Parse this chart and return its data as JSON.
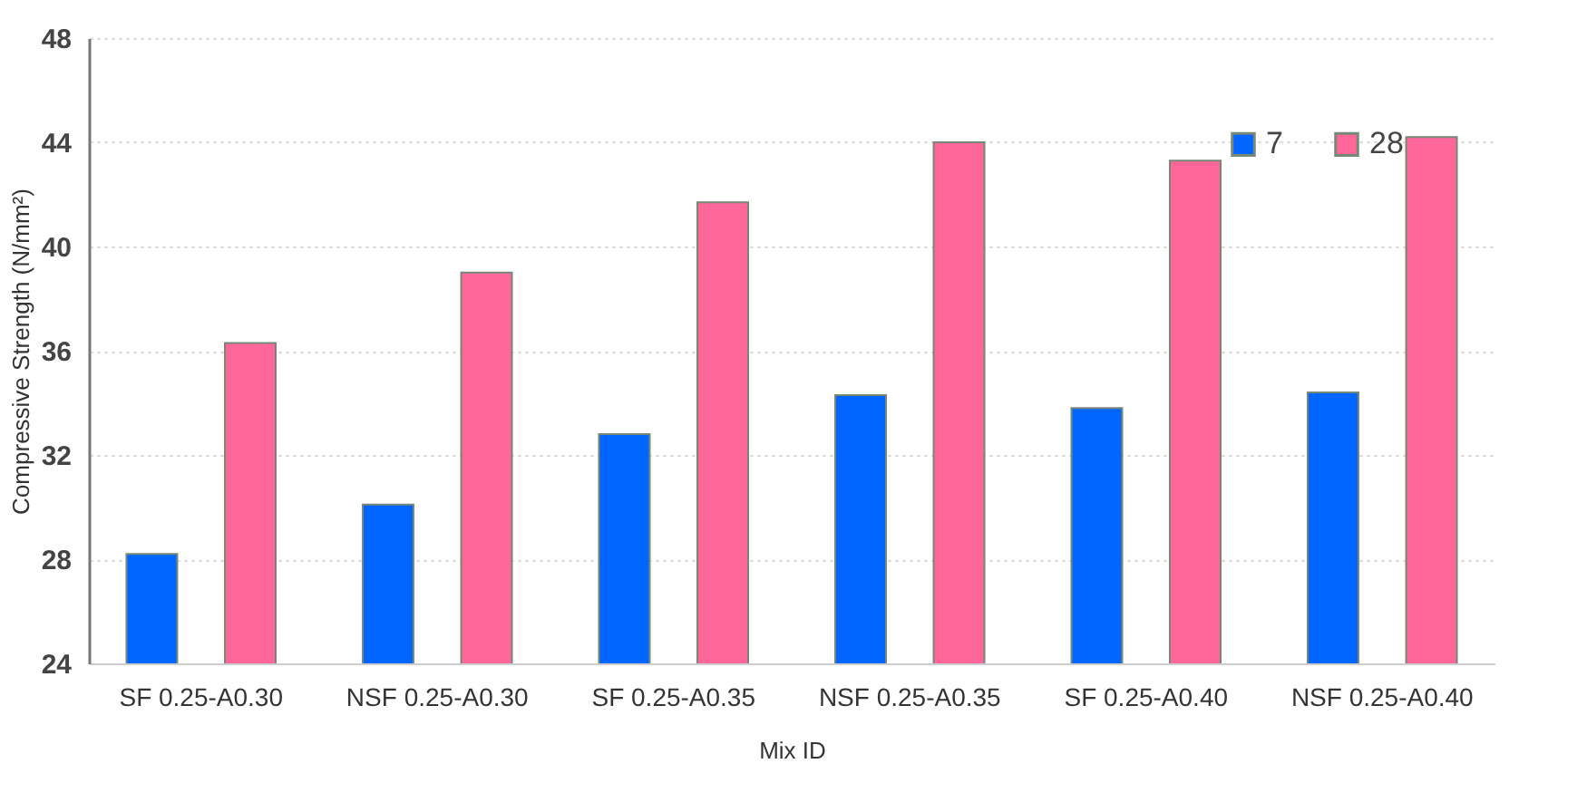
{
  "chart_data": {
    "type": "bar",
    "xlabel": "Mix ID",
    "ylabel": "Compressive  Strength (N/mm²)",
    "categories": [
      "SF 0.25-A0.30",
      "NSF 0.25-A0.30",
      "SF 0.25-A0.35",
      "NSF 0.25-A0.35",
      "SF 0.25-A0.40",
      "NSF 0.25-A0.40"
    ],
    "series": [
      {
        "name": "7",
        "color": "#0066ff",
        "values": [
          28.2,
          30.1,
          32.8,
          34.3,
          33.8,
          34.4
        ]
      },
      {
        "name": "28",
        "color": "#ff6699",
        "values": [
          36.3,
          39.0,
          41.7,
          44.0,
          43.3,
          44.2
        ]
      }
    ],
    "ylim": [
      24,
      48
    ],
    "yticks": [
      24,
      28,
      32,
      36,
      40,
      44,
      48
    ],
    "grid": "y",
    "legend": "top right"
  }
}
